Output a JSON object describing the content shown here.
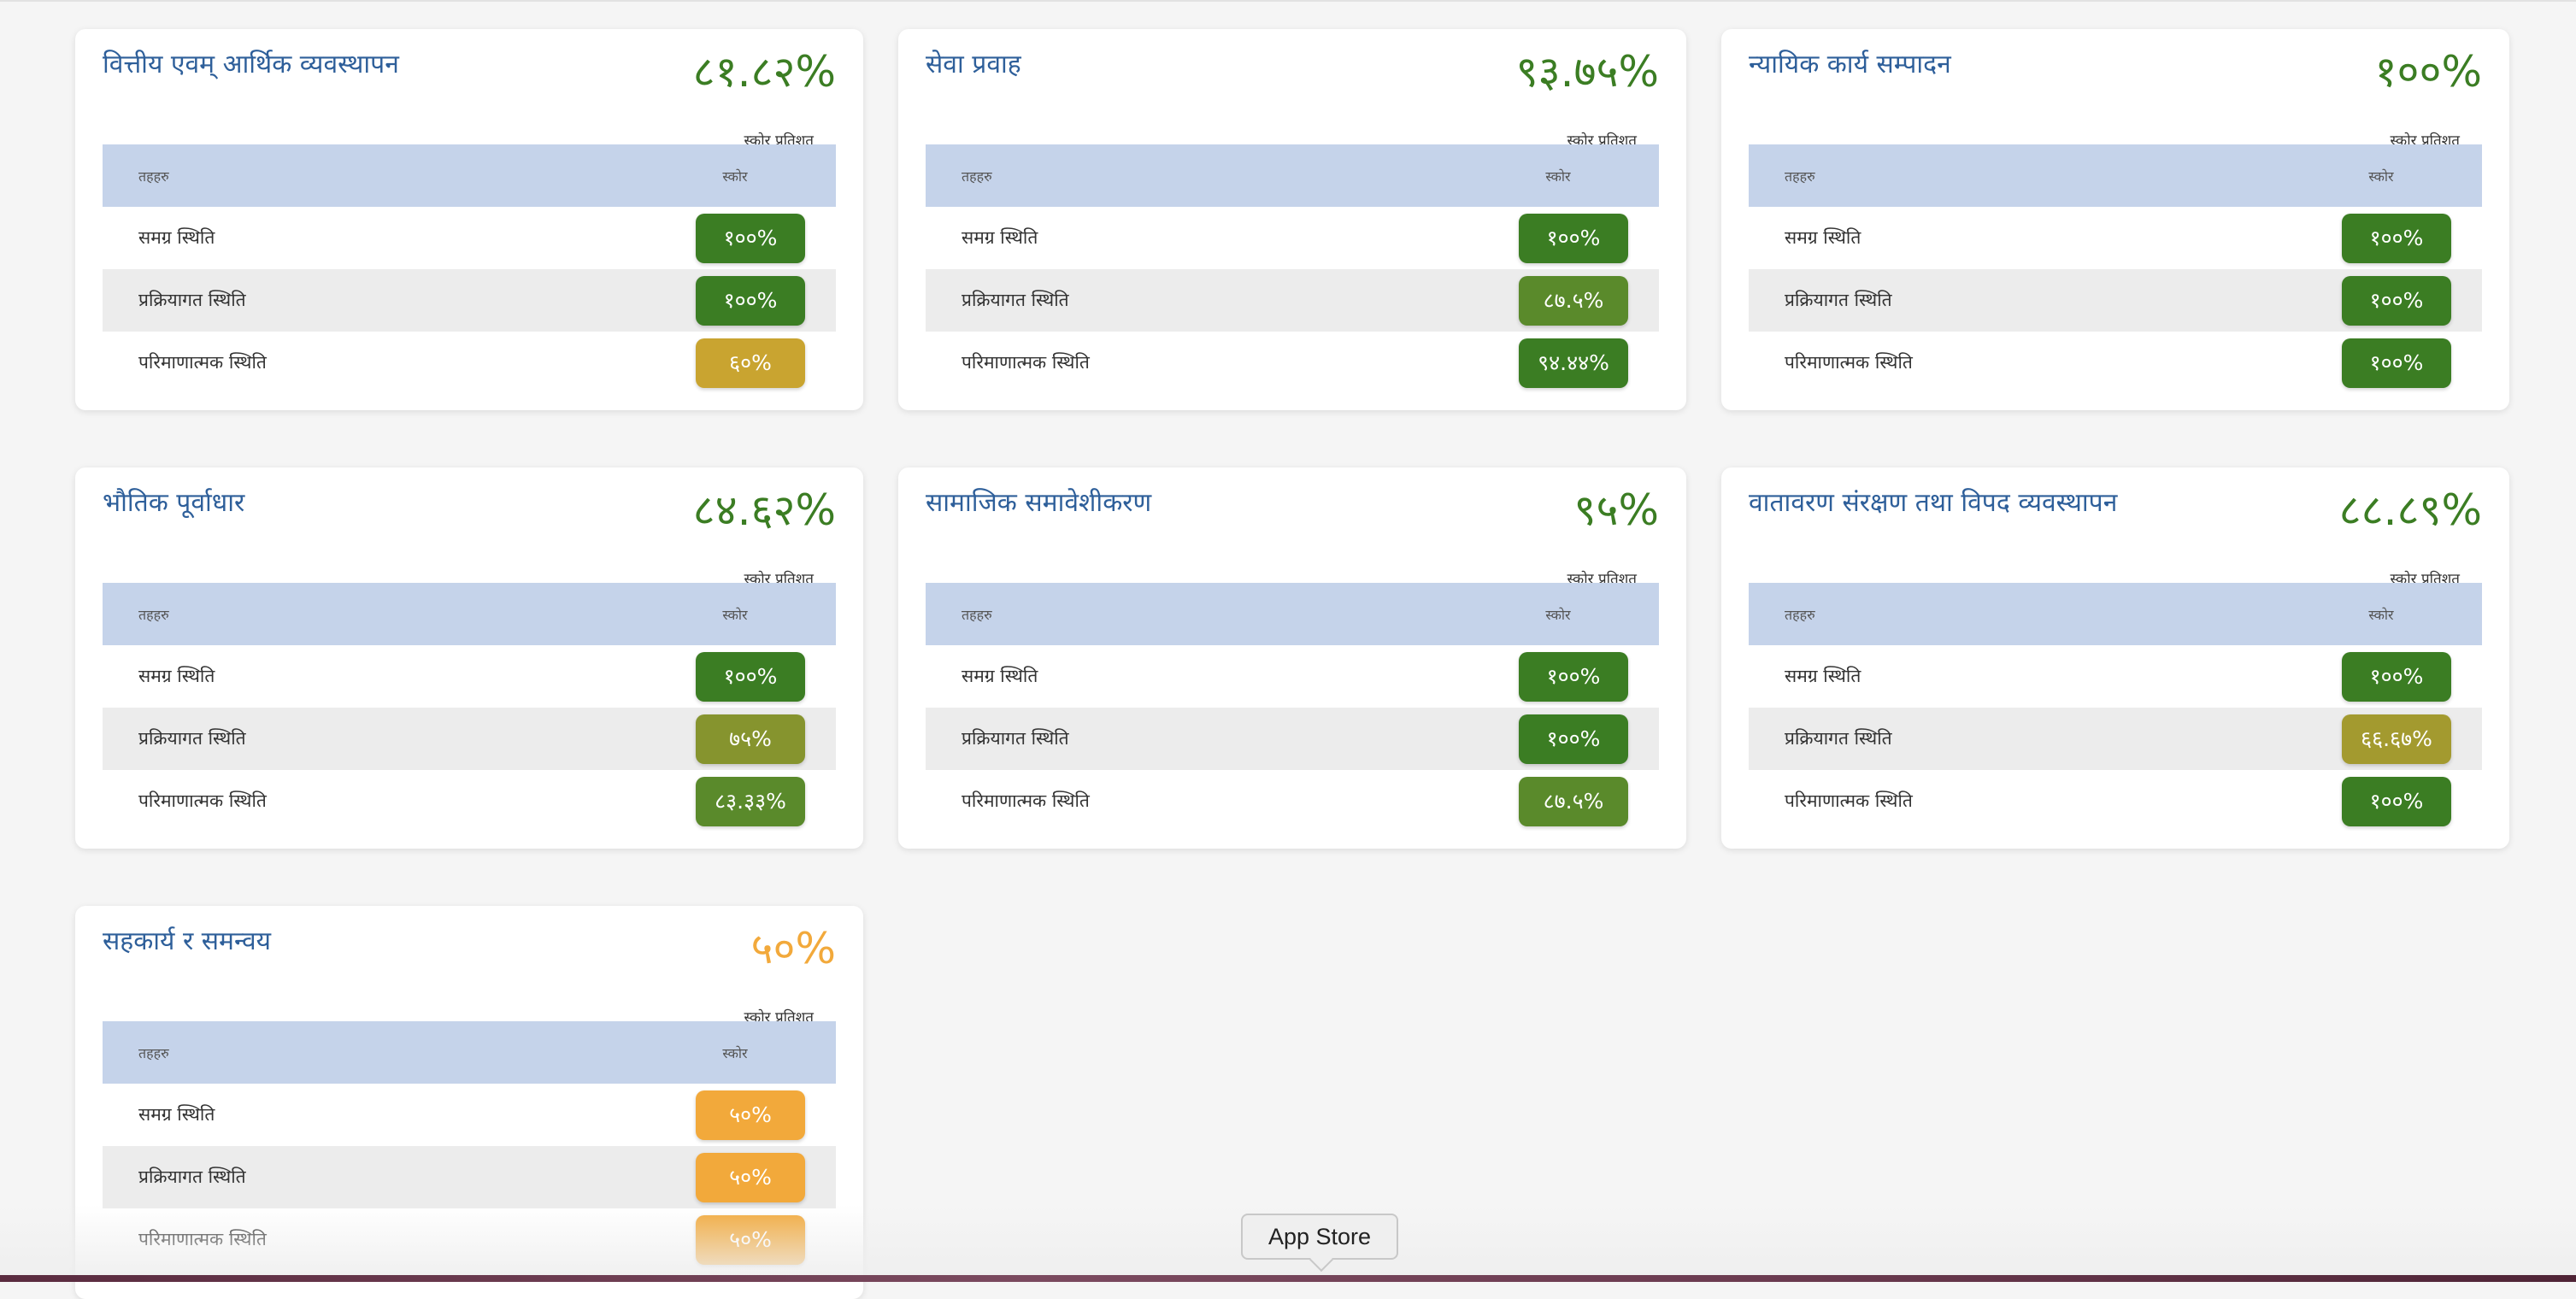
{
  "colors": {
    "dark_green": "#3b7d23",
    "mid_green": "#5a8a2b",
    "olive": "#86942e",
    "yellow_olive": "#a39a2f",
    "mustard": "#c9a430",
    "orange": "#f2a93b",
    "title_blue": "#2e5f9a",
    "header_blue": "#c5d3ea"
  },
  "cards": [
    {
      "title": "वित्तीय एवम् आर्थिक व्यवस्थापन",
      "score": "८१.८२%",
      "score_color": "#3b7d23",
      "score_label": "स्कोर प्रतिशत",
      "header": {
        "col1": "तहहरु",
        "col2": "स्कोर"
      },
      "rows": [
        {
          "label": "समग्र स्थिति",
          "value": "१००%",
          "color": "#3b7d23"
        },
        {
          "label": "प्रक्रियागत स्थिति",
          "value": "१००%",
          "color": "#3b7d23"
        },
        {
          "label": "परिमाणात्मक स्थिति",
          "value": "६०%",
          "color": "#c9a430"
        }
      ]
    },
    {
      "title": "सेवा प्रवाह",
      "score": "९३.७५%",
      "score_color": "#3b7d23",
      "score_label": "स्कोर प्रतिशत",
      "header": {
        "col1": "तहहरु",
        "col2": "स्कोर"
      },
      "rows": [
        {
          "label": "समग्र स्थिति",
          "value": "१००%",
          "color": "#3b7d23"
        },
        {
          "label": "प्रक्रियागत स्थिति",
          "value": "८७.५%",
          "color": "#5a8a2b"
        },
        {
          "label": "परिमाणात्मक स्थिति",
          "value": "९४.४४%",
          "color": "#3b7d23"
        }
      ]
    },
    {
      "title": "न्यायिक कार्य सम्पादन",
      "score": "१००%",
      "score_color": "#3b7d23",
      "score_label": "स्कोर प्रतिशत",
      "header": {
        "col1": "तहहरु",
        "col2": "स्कोर"
      },
      "rows": [
        {
          "label": "समग्र स्थिति",
          "value": "१००%",
          "color": "#3b7d23"
        },
        {
          "label": "प्रक्रियागत स्थिति",
          "value": "१००%",
          "color": "#3b7d23"
        },
        {
          "label": "परिमाणात्मक स्थिति",
          "value": "१००%",
          "color": "#3b7d23"
        }
      ]
    },
    {
      "title": "भौतिक पूर्वाधार",
      "score": "८४.६२%",
      "score_color": "#3b7d23",
      "score_label": "स्कोर प्रतिशत",
      "header": {
        "col1": "तहहरु",
        "col2": "स्कोर"
      },
      "rows": [
        {
          "label": "समग्र स्थिति",
          "value": "१००%",
          "color": "#3b7d23"
        },
        {
          "label": "प्रक्रियागत स्थिति",
          "value": "७५%",
          "color": "#86942e"
        },
        {
          "label": "परिमाणात्मक स्थिति",
          "value": "८३.३३%",
          "color": "#5a8a2b"
        }
      ]
    },
    {
      "title": "सामाजिक समावेशीकरण",
      "score": "९५%",
      "score_color": "#3b7d23",
      "score_label": "स्कोर प्रतिशत",
      "header": {
        "col1": "तहहरु",
        "col2": "स्कोर"
      },
      "rows": [
        {
          "label": "समग्र स्थिति",
          "value": "१००%",
          "color": "#3b7d23"
        },
        {
          "label": "प्रक्रियागत स्थिति",
          "value": "१००%",
          "color": "#3b7d23"
        },
        {
          "label": "परिमाणात्मक स्थिति",
          "value": "८७.५%",
          "color": "#5a8a2b"
        }
      ]
    },
    {
      "title": "वातावरण संरक्षण तथा विपद व्यवस्थापन",
      "score": "८८.८९%",
      "score_color": "#3b7d23",
      "score_label": "स्कोर प्रतिशत",
      "header": {
        "col1": "तहहरु",
        "col2": "स्कोर"
      },
      "rows": [
        {
          "label": "समग्र स्थिति",
          "value": "१००%",
          "color": "#3b7d23"
        },
        {
          "label": "प्रक्रियागत स्थिति",
          "value": "६६.६७%",
          "color": "#a39a2f"
        },
        {
          "label": "परिमाणात्मक स्थिति",
          "value": "१००%",
          "color": "#3b7d23"
        }
      ]
    },
    {
      "title": "सहकार्य र समन्वय",
      "score": "५०%",
      "score_color": "#f2a93b",
      "score_label": "स्कोर प्रतिशत",
      "header": {
        "col1": "तहहरु",
        "col2": "स्कोर"
      },
      "rows": [
        {
          "label": "समग्र स्थिति",
          "value": "५०%",
          "color": "#f2a93b"
        },
        {
          "label": "प्रक्रियागत स्थिति",
          "value": "५०%",
          "color": "#f2a93b"
        },
        {
          "label": "परिमाणात्मक स्थिति",
          "value": "५०%",
          "color": "#f2a93b"
        }
      ]
    }
  ],
  "dock": {
    "tooltip": "App Store"
  }
}
